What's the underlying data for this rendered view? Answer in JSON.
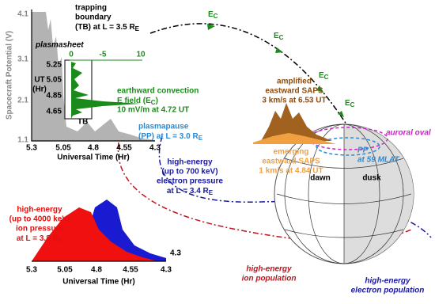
{
  "top_chart": {
    "y_label": "Spacecraft Potential (V)",
    "x_label": "Universal Time (Hr)",
    "yticks": [
      "4.1",
      "3.1",
      "2.1",
      "1.1"
    ],
    "xticks": [
      "5.3",
      "5.05",
      "4.8",
      "4.55",
      "4.3"
    ]
  },
  "inset": {
    "y_label": [
      "UT",
      "(Hr)"
    ],
    "yticks": [
      "5.25",
      "5.05",
      "4.85",
      "4.65"
    ],
    "xticks": [
      "0",
      "-5",
      "10"
    ],
    "marker": "TB"
  },
  "bottom_chart": {
    "x_label": "Universal Time (Hr)",
    "xticks": [
      "5.3",
      "5.05",
      "4.8",
      "4.55",
      "4.3"
    ],
    "end_label": "4.3"
  },
  "globe": {
    "dawn": "dawn",
    "dusk": "dusk"
  },
  "annotations": [
    {
      "lines": [
        "trapping",
        "boundary",
        {
          "t": "(TB) at L = 3.5 R",
          "sub": "E"
        }
      ]
    },
    {
      "lines": [
        "plasmasheet"
      ]
    },
    {
      "lines": [
        "earthward convection",
        {
          "t": "E field (E",
          "sub": "C",
          "after": ")"
        },
        "10 mV/m at 4.72 UT"
      ]
    },
    {
      "lines": [
        "plasmapause",
        {
          "t": "(PP) at L = 3.0 R",
          "sub": "E"
        }
      ]
    },
    {
      "lines": [
        {
          "t": "E",
          "sub": "C"
        }
      ]
    },
    {
      "lines": [
        {
          "t": "E",
          "sub": "C"
        }
      ]
    },
    {
      "lines": [
        {
          "t": "E",
          "sub": "C"
        }
      ]
    },
    {
      "lines": [
        {
          "t": "E",
          "sub": "C"
        }
      ]
    },
    {
      "lines": [
        "amplified",
        "eastward SAPS",
        "3 km/s at 6.53 UT"
      ]
    },
    {
      "lines": [
        "emerging",
        "eastward SAPS",
        "1 km/s at 4.84 UT"
      ]
    },
    {
      "lines": [
        "auroral oval"
      ]
    },
    {
      "lines": [
        "PP",
        "at 59 MLAT"
      ]
    },
    {
      "lines": [
        "high-energy",
        "(up to 700 keV)",
        "electron pressure",
        {
          "t": "at L = 3.4 R",
          "sub": "E"
        }
      ]
    },
    {
      "lines": [
        "high-energy",
        "(up to 4000 keV)",
        "ion pressure",
        {
          "t": "at L = 3.8 R",
          "sub": "E"
        }
      ]
    },
    {
      "lines": [
        "high-energy",
        "ion population"
      ]
    },
    {
      "lines": [
        "high-energy",
        "electron population"
      ]
    }
  ]
}
